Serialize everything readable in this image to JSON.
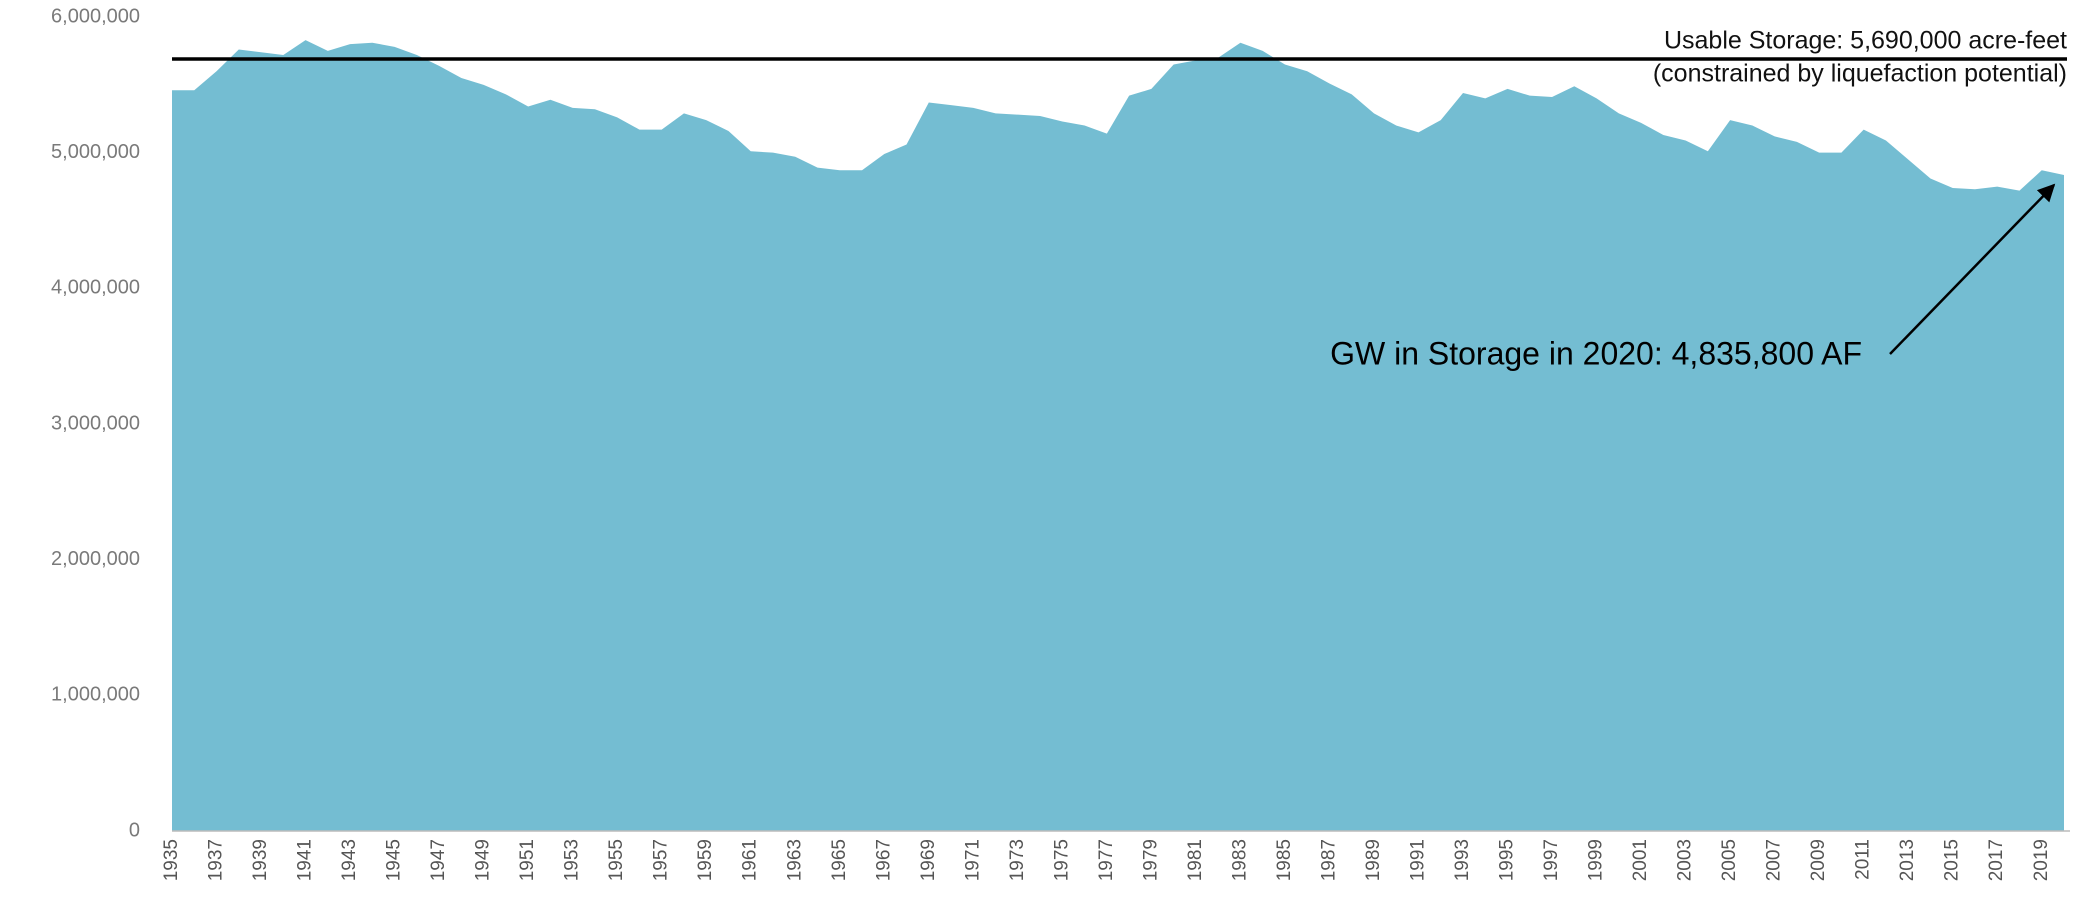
{
  "chart_data": {
    "type": "area",
    "categories": [
      "1935",
      null,
      "1937",
      null,
      "1939",
      null,
      "1941",
      null,
      "1943",
      null,
      "1945",
      null,
      "1947",
      null,
      "1949",
      null,
      "1951",
      null,
      "1953",
      null,
      "1955",
      null,
      "1957",
      null,
      "1959",
      null,
      "1961",
      null,
      "1963",
      null,
      "1965",
      null,
      "1967",
      null,
      "1969",
      null,
      "1971",
      null,
      "1973",
      null,
      "1975",
      null,
      "1977",
      null,
      "1979",
      null,
      "1981",
      null,
      "1983",
      null,
      "1985",
      null,
      "1987",
      null,
      "1989",
      null,
      "1991",
      null,
      "1993",
      null,
      "1995",
      null,
      "1997",
      null,
      "1999",
      null,
      "2001",
      null,
      "2003",
      null,
      "2005",
      null,
      "2007",
      null,
      "2009",
      null,
      "2011",
      null,
      "2013",
      null,
      "2015",
      null,
      "2017",
      null,
      "2019",
      null
    ],
    "values": [
      5460000,
      5460000,
      5600000,
      5760000,
      5740000,
      5720000,
      5830000,
      5750000,
      5800000,
      5810000,
      5780000,
      5720000,
      5640000,
      5550000,
      5500000,
      5430000,
      5340000,
      5390000,
      5330000,
      5320000,
      5260000,
      5170000,
      5170000,
      5290000,
      5240000,
      5160000,
      5010000,
      5000000,
      4970000,
      4890000,
      4870000,
      4870000,
      4990000,
      5060000,
      5370000,
      5350000,
      5330000,
      5290000,
      5280000,
      5270000,
      5230000,
      5200000,
      5140000,
      5420000,
      5470000,
      5650000,
      5680000,
      5700000,
      5810000,
      5750000,
      5650000,
      5600000,
      5510000,
      5430000,
      5290000,
      5200000,
      5150000,
      5240000,
      5440000,
      5400000,
      5470000,
      5420000,
      5410000,
      5490000,
      5400000,
      5290000,
      5220000,
      5130000,
      5090000,
      5010000,
      5240000,
      5200000,
      5120000,
      5080000,
      5000000,
      5000000,
      5170000,
      5090000,
      4950000,
      4810000,
      4740000,
      4730000,
      4750000,
      4720000,
      4870000,
      4835800
    ],
    "color": "#74bdd2",
    "ylim": [
      0,
      6000000
    ],
    "yticks": [
      {
        "value": 0,
        "label": "0"
      },
      {
        "value": 1000000,
        "label": "1,000,000"
      },
      {
        "value": 2000000,
        "label": "2,000,000"
      },
      {
        "value": 3000000,
        "label": "3,000,000"
      },
      {
        "value": 4000000,
        "label": "4,000,000"
      },
      {
        "value": 5000000,
        "label": "5,000,000"
      },
      {
        "value": 6000000,
        "label": "6,000,000"
      }
    ],
    "grid": false,
    "reference_line": {
      "value": 5690000,
      "label_lines": [
        "Usable Storage:  5,690,000 acre-feet",
        "(constrained by liquefaction potential)"
      ]
    },
    "annotation": "GW in Storage in 2020: 4,835,800 AF"
  }
}
